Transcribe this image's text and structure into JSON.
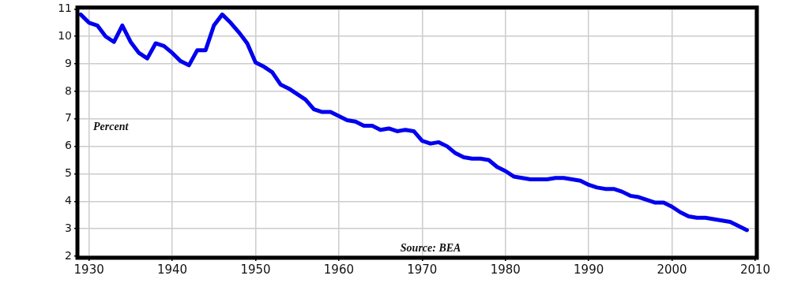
{
  "chart_data": {
    "type": "line",
    "ylabel": "Percent",
    "annotations": [
      "Source: BEA"
    ],
    "x": [
      1929,
      1930,
      1931,
      1932,
      1933,
      1934,
      1935,
      1936,
      1937,
      1938,
      1939,
      1940,
      1941,
      1942,
      1943,
      1944,
      1945,
      1946,
      1947,
      1948,
      1949,
      1950,
      1951,
      1952,
      1953,
      1954,
      1955,
      1956,
      1957,
      1958,
      1959,
      1960,
      1961,
      1962,
      1963,
      1964,
      1965,
      1966,
      1967,
      1968,
      1969,
      1970,
      1971,
      1972,
      1973,
      1974,
      1975,
      1976,
      1977,
      1978,
      1979,
      1980,
      1981,
      1982,
      1983,
      1984,
      1985,
      1986,
      1987,
      1988,
      1989,
      1990,
      1991,
      1992,
      1993,
      1994,
      1995,
      1996,
      1997,
      1998,
      1999,
      2000,
      2001,
      2002,
      2003,
      2004,
      2005,
      2006,
      2007,
      2008,
      2009
    ],
    "series": [
      {
        "color": "#0000ee",
        "values": [
          10.8,
          10.5,
          10.4,
          10.0,
          9.8,
          10.4,
          9.8,
          9.4,
          9.2,
          9.75,
          9.65,
          9.4,
          9.1,
          8.95,
          9.5,
          9.5,
          10.4,
          10.8,
          10.5,
          10.15,
          9.75,
          9.05,
          8.9,
          8.7,
          8.25,
          8.1,
          7.9,
          7.7,
          7.35,
          7.25,
          7.25,
          7.1,
          6.95,
          6.9,
          6.75,
          6.75,
          6.6,
          6.65,
          6.55,
          6.6,
          6.55,
          6.2,
          6.1,
          6.15,
          6.0,
          5.75,
          5.6,
          5.55,
          5.55,
          5.5,
          5.25,
          5.1,
          4.9,
          4.85,
          4.8,
          4.8,
          4.8,
          4.85,
          4.85,
          4.8,
          4.75,
          4.6,
          4.5,
          4.45,
          4.45,
          4.35,
          4.2,
          4.15,
          4.05,
          3.95,
          3.95,
          3.8,
          3.6,
          3.45,
          3.4,
          3.4,
          3.35,
          3.3,
          3.25,
          3.1,
          2.95
        ]
      }
    ],
    "xlim": [
      1928.8,
      2010
    ],
    "xticks": [
      1930,
      1940,
      1950,
      1960,
      1970,
      1980,
      1990,
      2000,
      2010
    ],
    "ylim": [
      2,
      11
    ],
    "yticks": [
      2,
      3,
      4,
      5,
      6,
      7,
      8,
      9,
      10,
      11
    ],
    "grid": true,
    "legend": false,
    "marker": "none",
    "line_style": "solid"
  }
}
